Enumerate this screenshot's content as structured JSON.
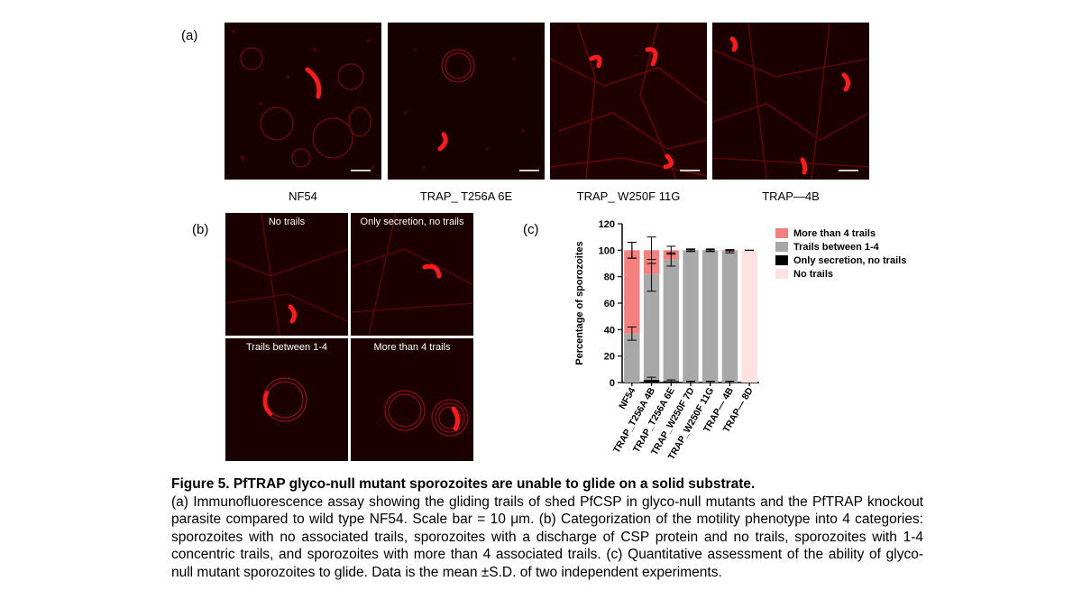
{
  "panel_labels": {
    "a": "(a)",
    "b": "(b)",
    "c": "(c)"
  },
  "panel_a": {
    "captions": [
      "NF54",
      "TRAP_ T256A 6E",
      "TRAP_ W250F 11G",
      "TRAP—4B"
    ]
  },
  "panel_b": {
    "labels": [
      "No trails",
      "Only secretion, no trails",
      "Trails between 1-4",
      "More than 4 trails"
    ]
  },
  "chart_data": {
    "type": "bar",
    "stacked": true,
    "title": "",
    "xlabel": "",
    "ylabel": "Percentage of sporozoites",
    "ylim": [
      0,
      120
    ],
    "yticks": [
      0,
      20,
      40,
      60,
      80,
      100,
      120
    ],
    "categories": [
      "NF54",
      "TRAP_T256A 4B",
      "TRAP_T256A 6E",
      "TRAP_W250F 7D",
      "TRAP_W250F 11G",
      "TRAP— 4B",
      "TRAP— 8D"
    ],
    "series": [
      {
        "name": "No trails",
        "color": "#ffe1e1",
        "values": [
          0,
          0,
          0,
          0,
          0,
          0,
          100
        ]
      },
      {
        "name": "Only secretion, no trails",
        "color": "#000000",
        "values": [
          0,
          2,
          1,
          0,
          0,
          0,
          0
        ]
      },
      {
        "name": "Trails between 1-4",
        "color": "#a8a8a8",
        "values": [
          37,
          80,
          92,
          100,
          100,
          99,
          0
        ]
      },
      {
        "name": "More than 4 trails",
        "color": "#f58080",
        "values": [
          63,
          18,
          7,
          0,
          0,
          1,
          0
        ]
      }
    ],
    "error_bar_tops": [
      [
        100,
        81,
        93,
        100,
        100,
        99,
        100
      ],
      [
        37,
        2,
        1,
        0.5,
        0.5,
        0.5,
        0
      ],
      [
        100,
        100,
        100,
        100,
        100,
        100,
        0
      ]
    ],
    "legend": {
      "placement": "right",
      "entries": [
        {
          "name": "More than 4 trails",
          "color": "#f58080"
        },
        {
          "name": "Trails between 1-4",
          "color": "#a8a8a8"
        },
        {
          "name": "Only secretion, no trails",
          "color": "#000000"
        },
        {
          "name": "No trails",
          "color": "#ffe1e1"
        }
      ]
    }
  },
  "caption": {
    "title": "Figure 5. PfTRAP glyco-null mutant sporozoites are unable to glide on a solid substrate.",
    "body": "(a) Immunofluorescence assay showing the gliding trails of shed PfCSP in glyco-null mutants and the PfTRAP knockout parasite compared to wild type NF54. Scale bar = 10 μm. (b) Categorization of the motility phenotype into 4 categories: sporozoites with no associated trails, sporozoites with a discharge of CSP protein and no trails, sporozoites with 1-4 concentric trails, and sporozoites with more than 4 associated trails. (c) Quantitative assessment of the ability of glyco-null mutant sporozoites to glide. Data is the mean ±S.D. of two independent experiments."
  }
}
